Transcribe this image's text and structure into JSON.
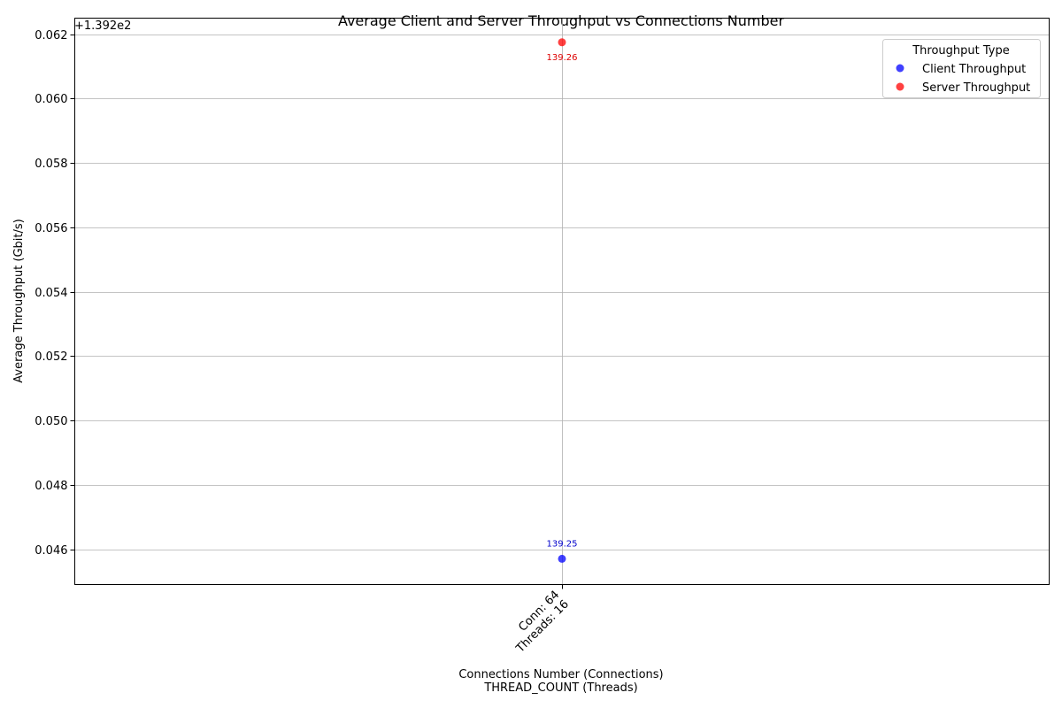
{
  "chart_data": {
    "type": "scatter",
    "title": "Average Client and Server Throughput vs Connections Number",
    "xlabel_line1": "Connections Number (Connections)",
    "xlabel_line2": "THREAD_COUNT (Threads)",
    "ylabel": "Average Throughput (Gbit/s)",
    "offset_label": "+1.392e2",
    "x_categories": [
      {
        "line1": "Conn: 64",
        "line2": "Threads: 16"
      }
    ],
    "ylim": [
      0.0449,
      0.0625
    ],
    "y_ticks": [
      0.046,
      0.048,
      0.05,
      0.052,
      0.054,
      0.056,
      0.058,
      0.06,
      0.062
    ],
    "y_tick_labels": [
      "0.046",
      "0.048",
      "0.050",
      "0.052",
      "0.054",
      "0.056",
      "0.058",
      "0.060",
      "0.062"
    ],
    "grid": true,
    "legend": {
      "title": "Throughput Type",
      "placement": "top-right"
    },
    "series": [
      {
        "name": "Client Throughput",
        "color": "#0000ff",
        "label_color": "#0000cc",
        "points": [
          {
            "x_index": 0,
            "y": 0.0457,
            "label": "139.25",
            "label_pos": "above"
          }
        ]
      },
      {
        "name": "Server Throughput",
        "color": "#ff0000",
        "label_color": "#dd0000",
        "points": [
          {
            "x_index": 0,
            "y": 0.06175,
            "label": "139.26",
            "label_pos": "below"
          }
        ]
      }
    ]
  }
}
